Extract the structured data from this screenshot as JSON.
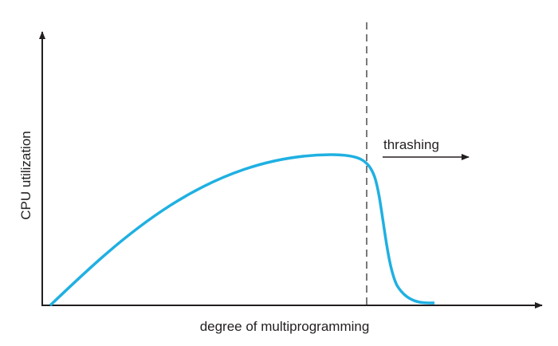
{
  "axes": {
    "y_label": "CPU utilization",
    "x_label": "degree of multiprogramming"
  },
  "annotation": "thrashing"
}
